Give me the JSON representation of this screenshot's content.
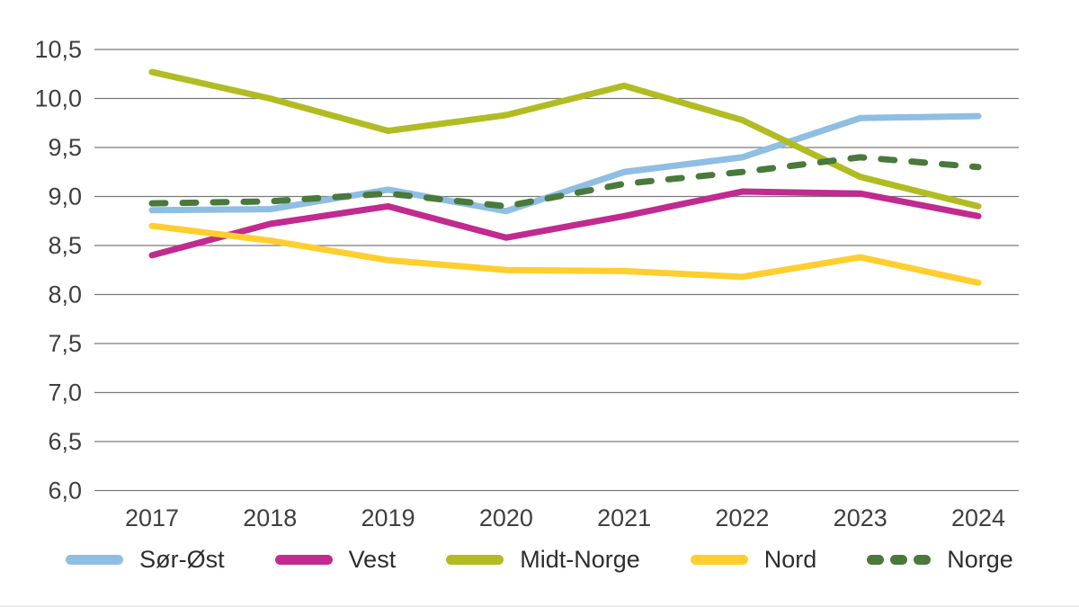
{
  "chart_data": {
    "type": "line",
    "x": [
      2017,
      2018,
      2019,
      2020,
      2021,
      2022,
      2023,
      2024
    ],
    "x_tick_labels": [
      "2017",
      "2018",
      "2019",
      "2020",
      "2021",
      "2022",
      "2023",
      "2024"
    ],
    "series": [
      {
        "name": "Sør-Øst",
        "color": "#8FBEE3",
        "dashed": false,
        "values": [
          8.86,
          8.87,
          9.07,
          8.85,
          9.25,
          9.4,
          9.8,
          9.82
        ]
      },
      {
        "name": "Vest",
        "color": "#C12A8E",
        "dashed": false,
        "values": [
          8.4,
          8.72,
          8.9,
          8.58,
          8.8,
          9.05,
          9.03,
          8.8
        ]
      },
      {
        "name": "Midt-Norge",
        "color": "#B1BC22",
        "dashed": false,
        "values": [
          10.27,
          10.0,
          9.67,
          9.83,
          10.13,
          9.78,
          9.2,
          8.9
        ]
      },
      {
        "name": "Nord",
        "color": "#FFCE2F",
        "dashed": false,
        "values": [
          8.7,
          8.55,
          8.35,
          8.25,
          8.24,
          8.18,
          8.38,
          8.12
        ]
      },
      {
        "name": "Norge",
        "color": "#49793B",
        "dashed": true,
        "values": [
          8.93,
          8.95,
          9.03,
          8.9,
          9.13,
          9.25,
          9.4,
          9.3
        ]
      }
    ],
    "y_ticks": [
      {
        "value": 10.5,
        "label": "10,5"
      },
      {
        "value": 10.0,
        "label": "10,0"
      },
      {
        "value": 9.5,
        "label": "9,5"
      },
      {
        "value": 9.0,
        "label": "9,0"
      },
      {
        "value": 8.5,
        "label": "8,5"
      },
      {
        "value": 8.0,
        "label": "8,0"
      },
      {
        "value": 7.5,
        "label": "7,5"
      },
      {
        "value": 7.0,
        "label": "7,0"
      },
      {
        "value": 6.5,
        "label": "6,5"
      },
      {
        "value": 6.0,
        "label": "6,0"
      }
    ],
    "ylim": [
      6.0,
      10.5
    ],
    "title": "",
    "xlabel": "",
    "ylabel": "",
    "grid": "horizontal",
    "legend_position": "bottom"
  },
  "colors": {
    "background": "#FFFFFF",
    "gridline": "#7A7A7A",
    "tick_text": "#3F3F3F",
    "legend_text": "#2E2E2E"
  }
}
